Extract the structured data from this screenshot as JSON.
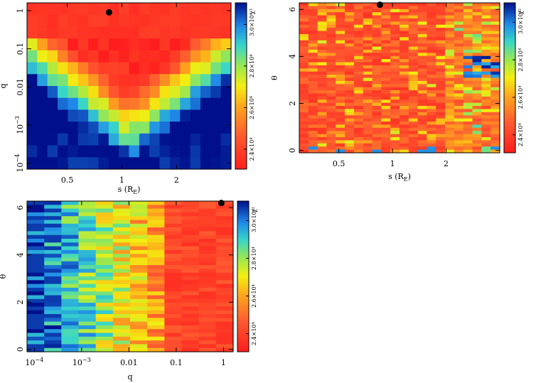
{
  "chart_data": [
    {
      "type": "heatmap",
      "name": "s-q",
      "xlabel_main": "s (R",
      "xlabel_sub": "E",
      "xlabel_close": ")",
      "ylabel": "q",
      "xscale": "log",
      "yscale": "log",
      "xlim": [
        0.3,
        4.0
      ],
      "ylim": [
        7e-05,
        1.6
      ],
      "xticks": [
        {
          "v": 0.5,
          "label": "0.5"
        },
        {
          "v": 1,
          "label": "1"
        },
        {
          "v": 2,
          "label": "2"
        }
      ],
      "yticks": [
        {
          "v": 1,
          "label": "1",
          "exp": ""
        },
        {
          "v": 0.1,
          "label": "0.1",
          "exp": ""
        },
        {
          "v": 0.01,
          "label": "0.01",
          "exp": ""
        },
        {
          "v": 0.001,
          "label": "10",
          "exp": "−3"
        },
        {
          "v": 0.0001,
          "label": "10",
          "exp": "−4"
        }
      ],
      "nx": 20,
      "ny": 14,
      "best_fit": {
        "x": 0.85,
        "y": 0.9
      },
      "colorbar": {
        "title": "χ²",
        "labels": [
          "2.4×10⁴",
          "2.6×10⁴",
          "2.8×10⁴",
          "3.0×10⁴"
        ]
      }
    },
    {
      "type": "heatmap",
      "name": "s-theta",
      "xlabel_main": "s (R",
      "xlabel_sub": "E",
      "xlabel_close": ")",
      "ylabel": "θ",
      "xscale": "log",
      "yscale": "linear",
      "xlim": [
        0.3,
        4.0
      ],
      "ylim": [
        -0.1,
        6.28
      ],
      "xticks": [
        {
          "v": 0.5,
          "label": "0.5"
        },
        {
          "v": 1,
          "label": "1"
        },
        {
          "v": 2,
          "label": "2"
        }
      ],
      "yticks": [
        {
          "v": 0,
          "label": "0",
          "exp": ""
        },
        {
          "v": 2,
          "label": "2",
          "exp": ""
        },
        {
          "v": 4,
          "label": "4",
          "exp": ""
        },
        {
          "v": 6,
          "label": "6",
          "exp": ""
        }
      ],
      "nx": 22,
      "ny": 48,
      "best_fit": {
        "x": 0.85,
        "y": 6.2
      },
      "colorbar": {
        "title": "χ²",
        "labels": [
          "2.4×10⁴",
          "2.6×10⁴",
          "2.8×10⁴",
          "3.0×10⁴"
        ]
      }
    },
    {
      "type": "heatmap",
      "name": "q-theta",
      "xlabel_main": "q",
      "xlabel_sub": "",
      "xlabel_close": "",
      "ylabel": "θ",
      "xscale": "log",
      "yscale": "linear",
      "xlim": [
        7e-05,
        1.6
      ],
      "ylim": [
        -0.1,
        6.28
      ],
      "xticks": [
        {
          "v": 0.0001,
          "label": "10",
          "exp": "−4"
        },
        {
          "v": 0.001,
          "label": "10",
          "exp": "−3"
        },
        {
          "v": 0.01,
          "label": "0.01",
          "exp": ""
        },
        {
          "v": 0.1,
          "label": "0.1",
          "exp": ""
        },
        {
          "v": 1,
          "label": "1",
          "exp": ""
        }
      ],
      "yticks": [
        {
          "v": 0,
          "label": "0",
          "exp": ""
        },
        {
          "v": 2,
          "label": "2",
          "exp": ""
        },
        {
          "v": 4,
          "label": "4",
          "exp": ""
        },
        {
          "v": 6,
          "label": "6",
          "exp": ""
        }
      ],
      "nx": 12,
      "ny": 40,
      "best_fit": {
        "x": 0.9,
        "y": 6.2
      },
      "colorbar": {
        "title": "χ²",
        "labels": [
          "2.4×10⁴",
          "2.6×10⁴",
          "2.8×10⁴",
          "3.0×10⁴"
        ]
      }
    }
  ]
}
